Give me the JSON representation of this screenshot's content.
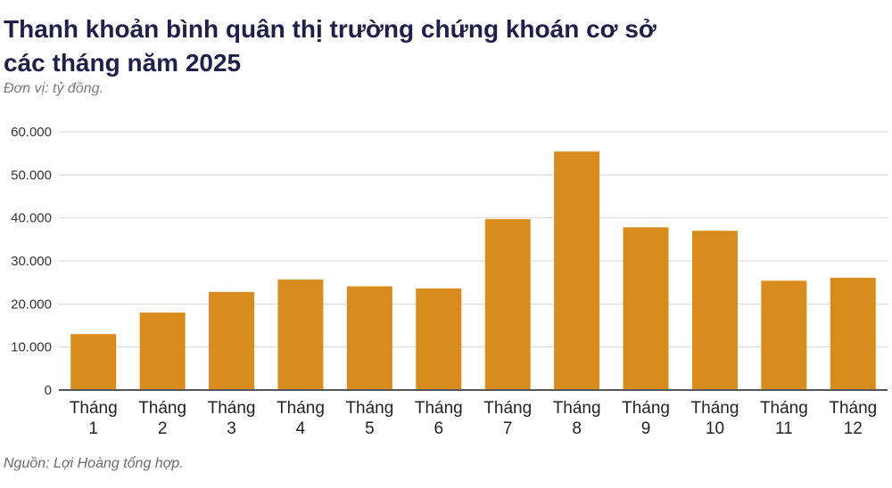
{
  "header": {
    "title_line1": "Thanh khoản bình quân thị trường chứng khoán cơ sở",
    "title_line2": "các tháng năm 2025",
    "unit": "Đơn vị: tỷ đồng."
  },
  "footer": {
    "source": "Nguồn: Lợi Hoàng tổng hợp."
  },
  "colors": {
    "bar": "#d98c1e",
    "grid": "#d6d6d6",
    "axis": "#555555",
    "title": "#1f1f4a"
  },
  "chart_data": {
    "type": "bar",
    "title": "Thanh khoản bình quân thị trường chứng khoán cơ sở các tháng năm 2025",
    "ylabel": "",
    "xlabel": "",
    "ylim": [
      0,
      60000
    ],
    "yticks": [
      0,
      10000,
      20000,
      30000,
      40000,
      50000,
      60000
    ],
    "ytick_labels": [
      "0",
      "10.000",
      "20.000",
      "30.000",
      "40.000",
      "50.000",
      "60.000"
    ],
    "grid": true,
    "legend": "none",
    "categories": [
      [
        "Tháng",
        "1"
      ],
      [
        "Tháng",
        "2"
      ],
      [
        "Tháng",
        "3"
      ],
      [
        "Tháng",
        "4"
      ],
      [
        "Tháng",
        "5"
      ],
      [
        "Tháng",
        "6"
      ],
      [
        "Tháng",
        "7"
      ],
      [
        "Tháng",
        "8"
      ],
      [
        "Tháng",
        "9"
      ],
      [
        "Tháng",
        "10"
      ],
      [
        "Tháng",
        "11"
      ],
      [
        "Tháng",
        "12"
      ]
    ],
    "values": [
      13000,
      18000,
      22800,
      25700,
      24100,
      23600,
      39700,
      55400,
      37800,
      37000,
      25400,
      26100
    ]
  }
}
